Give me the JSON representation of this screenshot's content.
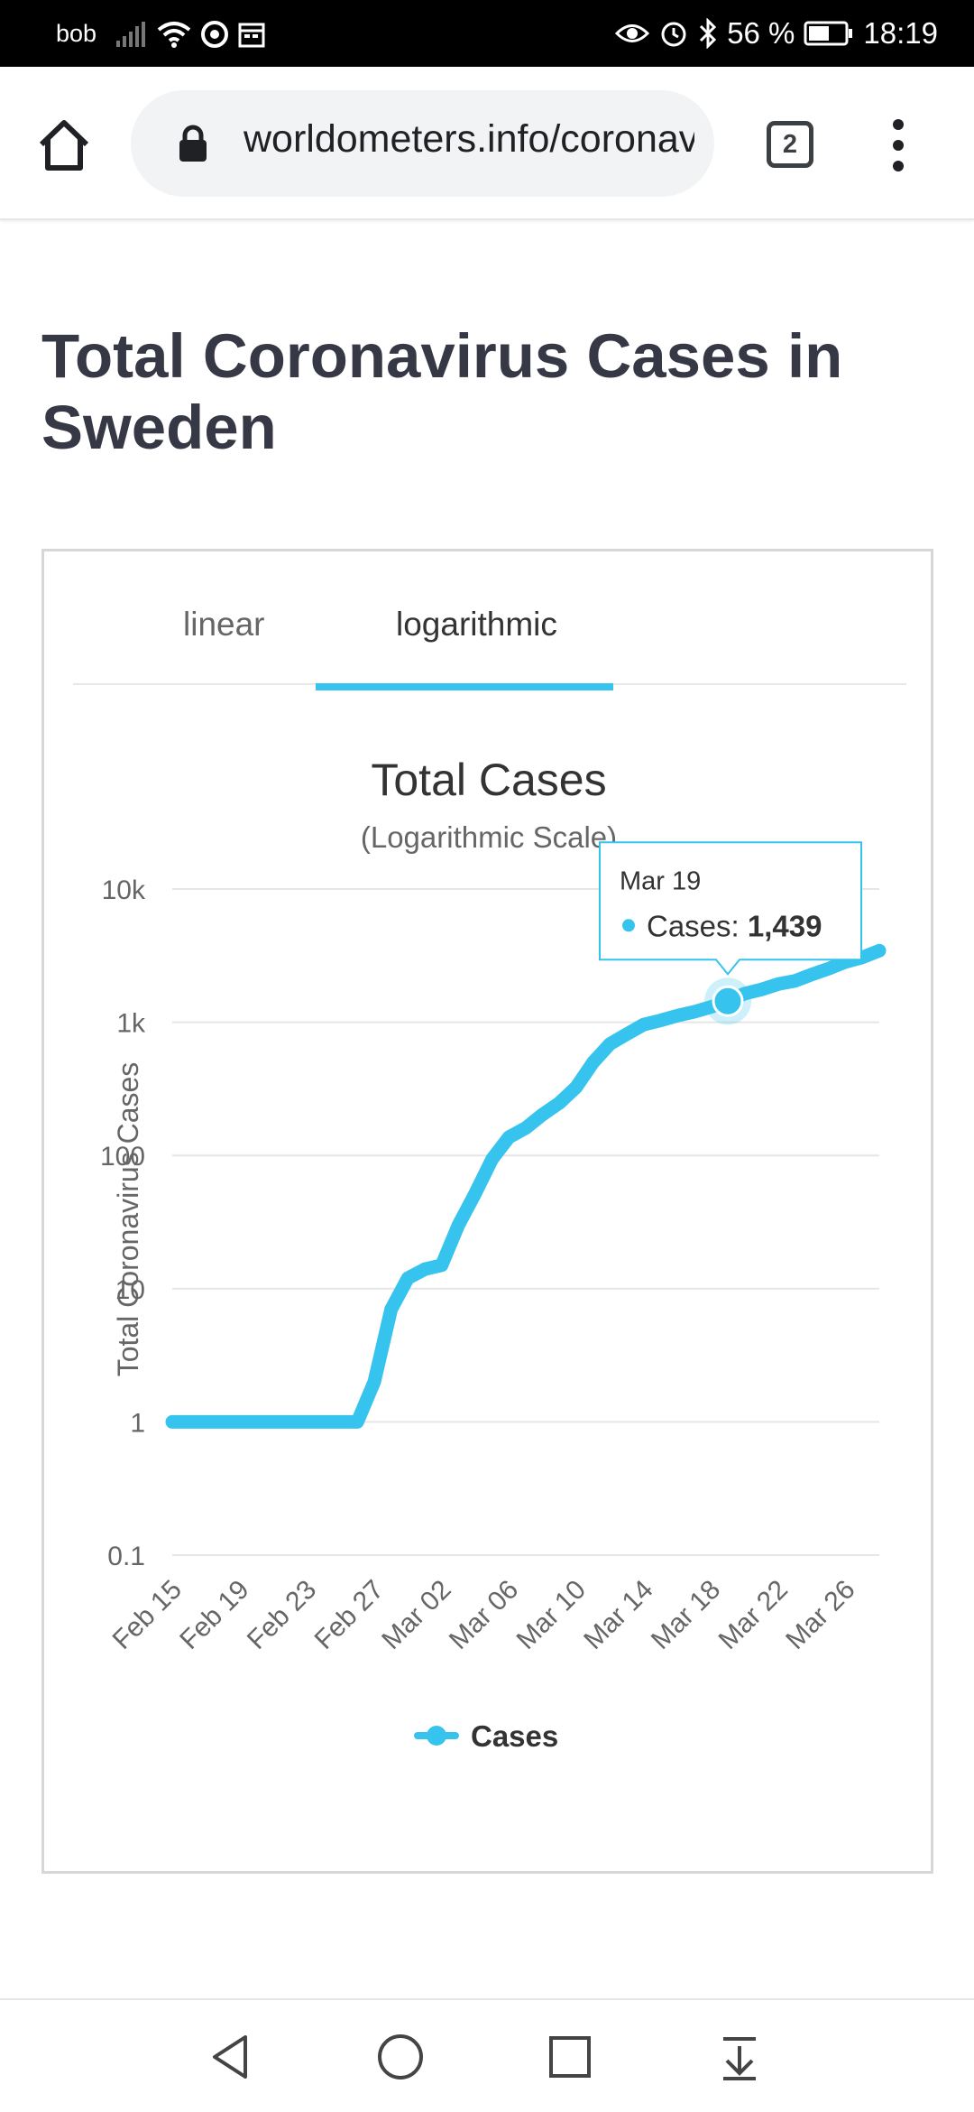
{
  "status_bar": {
    "carrier": "bob",
    "battery_text": "56 %",
    "time": "18:19",
    "icons": [
      "signal-icon",
      "wifi-icon",
      "hotspot-icon",
      "calendar-icon",
      "eye-icon",
      "alarm-icon",
      "bluetooth-icon",
      "battery-icon"
    ]
  },
  "browser": {
    "url": "worldometers.info/coronavirus",
    "tab_count": "2",
    "icons": [
      "home-icon",
      "lock-icon",
      "tabs-icon",
      "more-vert-icon"
    ]
  },
  "page": {
    "title": "Total Coronavirus Cases in Sweden"
  },
  "chart_tabs": {
    "linear": "linear",
    "logarithmic": "logarithmic",
    "active": "logarithmic",
    "accent_color": "#36c4ef"
  },
  "chart_data": {
    "type": "line",
    "title": "Total Cases",
    "subtitle": "(Logarithmic Scale)",
    "ylabel": "Total Coronavirus Cases",
    "xlabel": "",
    "yscale": "log",
    "ylim": [
      0.1,
      10000
    ],
    "yticks": [
      {
        "value": 0.1,
        "label": "0.1"
      },
      {
        "value": 1,
        "label": "1"
      },
      {
        "value": 10,
        "label": "10"
      },
      {
        "value": 100,
        "label": "100"
      },
      {
        "value": 1000,
        "label": "1k"
      },
      {
        "value": 10000,
        "label": "10k"
      }
    ],
    "xtick_labels": [
      "Feb 15",
      "Feb 19",
      "Feb 23",
      "Feb 27",
      "Mar 02",
      "Mar 06",
      "Mar 10",
      "Mar 14",
      "Mar 18",
      "Mar 22",
      "Mar 26"
    ],
    "grid": true,
    "legend": "bottom",
    "series": [
      {
        "name": "Cases",
        "color": "#36c4ef",
        "points": [
          {
            "date": "Feb 15",
            "value": 1
          },
          {
            "date": "Feb 17",
            "value": 1
          },
          {
            "date": "Feb 19",
            "value": 1
          },
          {
            "date": "Feb 21",
            "value": 1
          },
          {
            "date": "Feb 23",
            "value": 1
          },
          {
            "date": "Feb 25",
            "value": 1
          },
          {
            "date": "Feb 26",
            "value": 1
          },
          {
            "date": "Feb 27",
            "value": 2
          },
          {
            "date": "Feb 28",
            "value": 7
          },
          {
            "date": "Feb 29",
            "value": 12
          },
          {
            "date": "Mar 01",
            "value": 14
          },
          {
            "date": "Mar 02",
            "value": 15
          },
          {
            "date": "Mar 03",
            "value": 30
          },
          {
            "date": "Mar 04",
            "value": 52
          },
          {
            "date": "Mar 05",
            "value": 94
          },
          {
            "date": "Mar 06",
            "value": 137
          },
          {
            "date": "Mar 07",
            "value": 161
          },
          {
            "date": "Mar 08",
            "value": 203
          },
          {
            "date": "Mar 09",
            "value": 248
          },
          {
            "date": "Mar 10",
            "value": 326
          },
          {
            "date": "Mar 11",
            "value": 500
          },
          {
            "date": "Mar 12",
            "value": 687
          },
          {
            "date": "Mar 13",
            "value": 814
          },
          {
            "date": "Mar 14",
            "value": 961
          },
          {
            "date": "Mar 15",
            "value": 1032
          },
          {
            "date": "Mar 16",
            "value": 1121
          },
          {
            "date": "Mar 17",
            "value": 1196
          },
          {
            "date": "Mar 18",
            "value": 1301
          },
          {
            "date": "Mar 19",
            "value": 1439
          },
          {
            "date": "Mar 20",
            "value": 1639
          },
          {
            "date": "Mar 21",
            "value": 1763
          },
          {
            "date": "Mar 22",
            "value": 1934
          },
          {
            "date": "Mar 23",
            "value": 2046
          },
          {
            "date": "Mar 24",
            "value": 2286
          },
          {
            "date": "Mar 25",
            "value": 2526
          },
          {
            "date": "Mar 26",
            "value": 2840
          },
          {
            "date": "Mar 27",
            "value": 3069
          },
          {
            "date": "Mar 28",
            "value": 3447
          }
        ]
      }
    ],
    "tooltip": {
      "date": "Mar 19",
      "series": "Cases",
      "series_label": "Cases: ",
      "value": "1,439",
      "point_value": 1439
    }
  },
  "nav_bar": {
    "icons": [
      "back-icon",
      "home-circle-icon",
      "recents-icon",
      "notifications-pull-icon"
    ]
  }
}
